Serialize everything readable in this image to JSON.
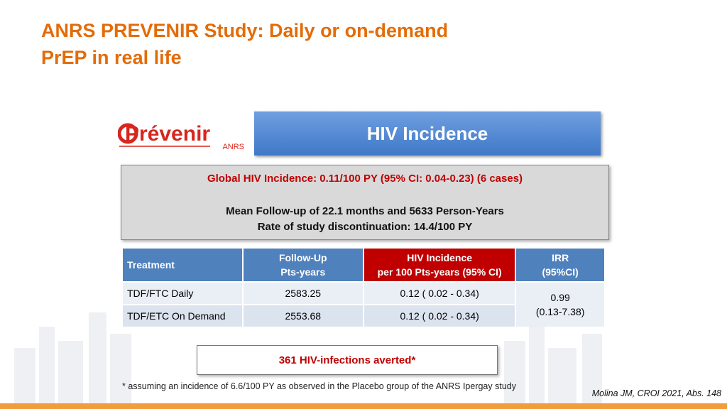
{
  "header": {
    "title_line1": "ANRS PREVENIR Study: Daily or on-demand",
    "title_line2": "PrEP in real life"
  },
  "logo": {
    "name": "Prévenir",
    "sub": "ANRS"
  },
  "banner": "HIV Incidence",
  "summary": {
    "global": "Global HIV Incidence: 0.11/100 PY (95% CI: 0.04-0.23) (6 cases)",
    "followup": "Mean Follow-up of 22.1 months and 5633 Person-Years",
    "discontinuation": "Rate of study discontinuation: 14.4/100 PY"
  },
  "table": {
    "headers": [
      [
        "Treatment"
      ],
      [
        "Follow-Up",
        "Pts-years"
      ],
      [
        "HIV Incidence",
        "per 100 Pts-years (95% CI)"
      ],
      [
        "IRR",
        "(95%CI)"
      ]
    ],
    "rows": [
      [
        "TDF/FTC Daily",
        "2583.25",
        "0.12 ( 0.02 - 0.34)"
      ],
      [
        "TDF/ETC On Demand",
        "2553.68",
        "0.12 ( 0.02 - 0.34)"
      ]
    ],
    "irr": [
      "0.99",
      "(0.13-7.38)"
    ]
  },
  "callout": "361 HIV-infections averted*",
  "footnote": "* assuming an incidence of 6.6/100 PY as observed in the Placebo group of the ANRS Ipergay study",
  "citation": "Molina JM, CROI 2021, Abs. 148"
}
